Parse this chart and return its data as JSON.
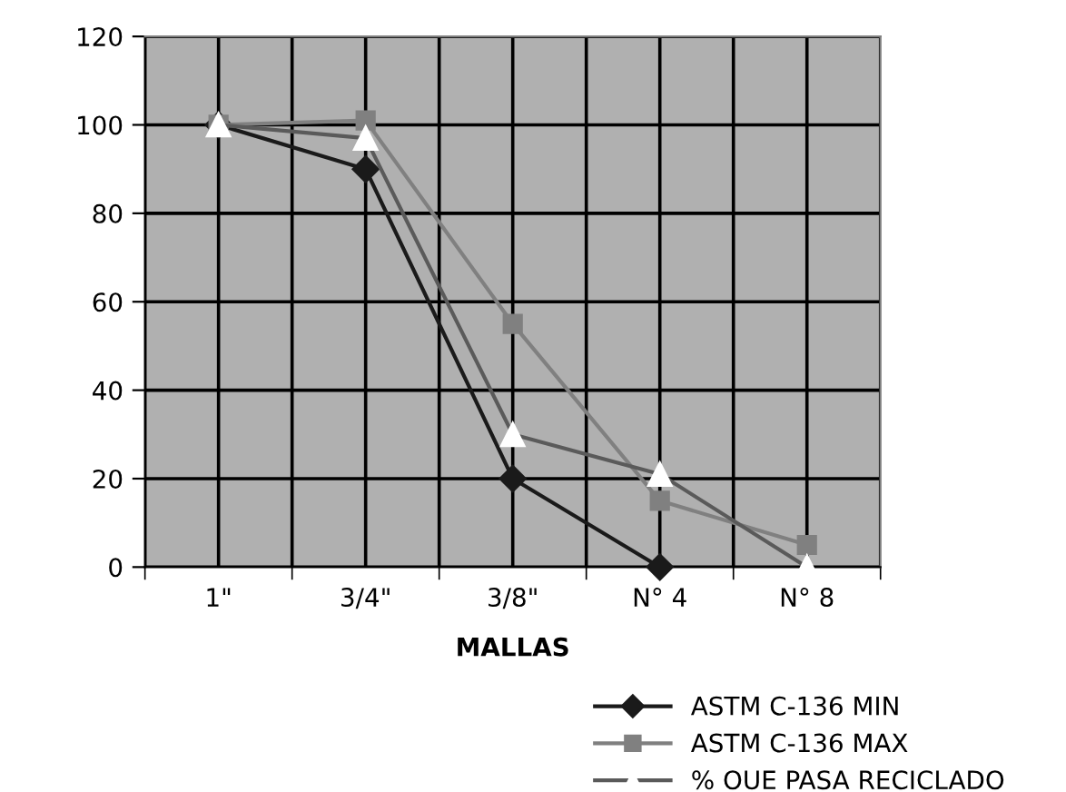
{
  "chart_data": {
    "type": "line",
    "xlabel": "MALLAS",
    "categories": [
      "1\"",
      "3/4\"",
      "3/8\"",
      "N° 4",
      "N° 8"
    ],
    "series": [
      {
        "name": "ASTM C-136 MIN",
        "color": "#1a1a1a",
        "marker": "diamond",
        "values": [
          100,
          90,
          20,
          0,
          null
        ]
      },
      {
        "name": "ASTM C-136 MAX",
        "color": "#808080",
        "marker": "square",
        "values": [
          100,
          101,
          55,
          15,
          5
        ]
      },
      {
        "name": "% OUE PASA RECICLADO",
        "color": "#5a5a5a",
        "marker": "triangle",
        "values": [
          100,
          97,
          30,
          21,
          0
        ]
      }
    ],
    "ylim": [
      0,
      120
    ],
    "yticks": [
      0,
      20,
      40,
      60,
      80,
      100,
      120
    ],
    "grid": true,
    "legend": "bottom right"
  }
}
